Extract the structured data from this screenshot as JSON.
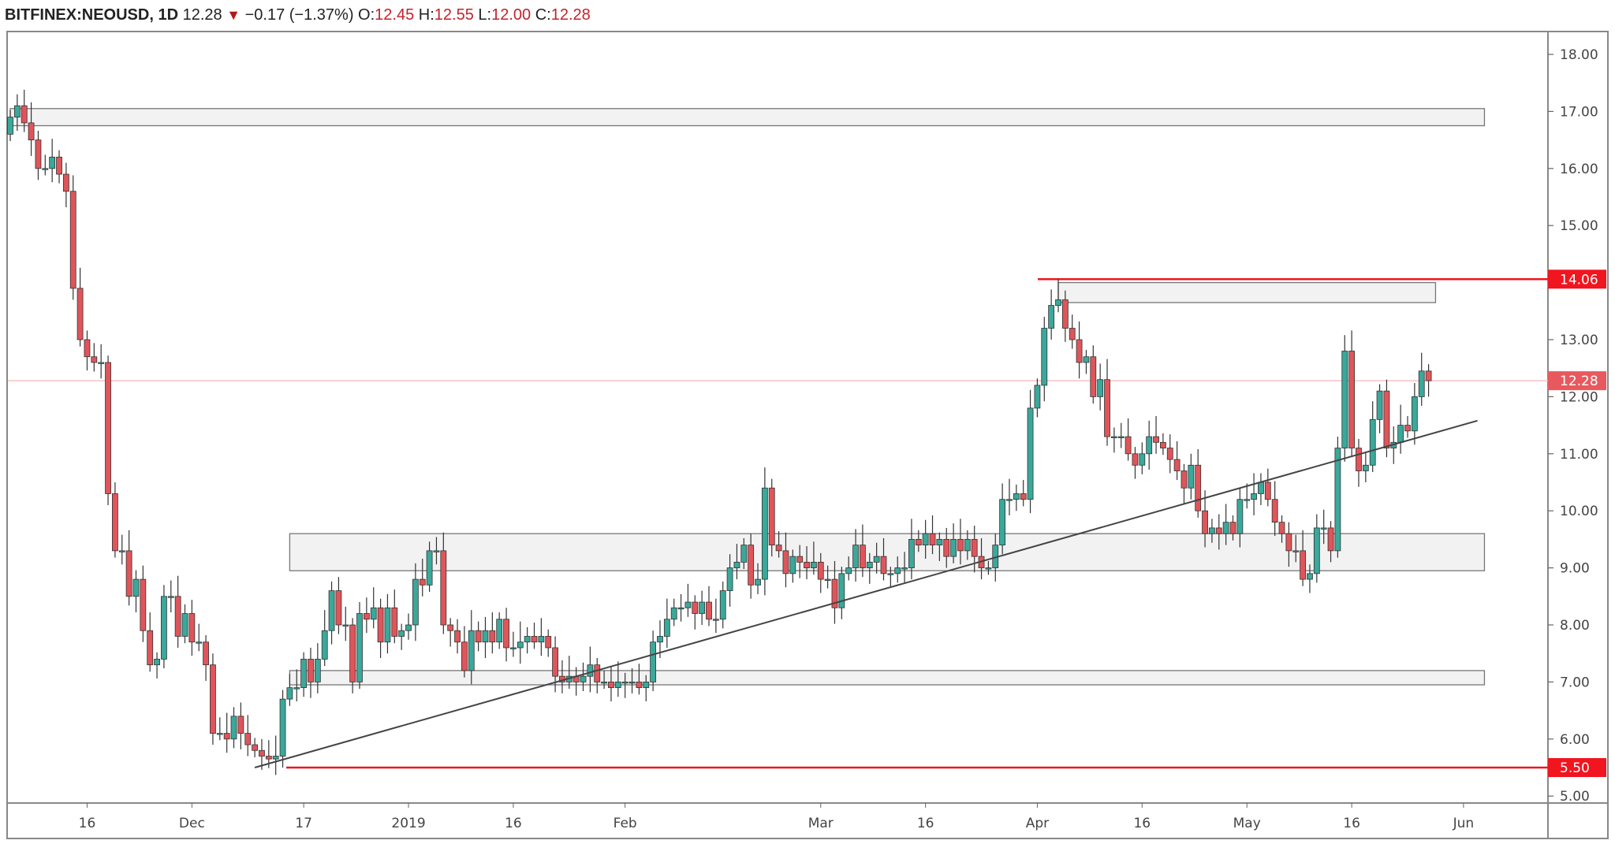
{
  "header": {
    "symbol": "BITFINEX:NEOUSD, 1D",
    "last": "12.28",
    "change": "−0.17 (−1.37%)",
    "o_label": "O:",
    "o": "12.45",
    "h_label": "H:",
    "h": "12.55",
    "l_label": "L:",
    "l": "12.00",
    "c_label": "C:",
    "c": "12.28",
    "arrow_icon": "triangle-down-icon"
  },
  "colors": {
    "up": "#3aa89a",
    "down": "#e0555a",
    "level": "#f0151f",
    "last": "#e8595e",
    "zone": "#f2f2f2"
  },
  "chart_data": {
    "type": "candlestick",
    "title": "BITFINEX:NEOUSD, 1D",
    "start_date": "2018-11-05",
    "ylim": [
      4.9,
      18.2
    ],
    "y_ticks": [
      "18.00",
      "17.00",
      "16.00",
      "15.00",
      "13.00",
      "12.00",
      "11.00",
      "10.00",
      "9.00",
      "8.00",
      "7.00",
      "6.00",
      "5.00"
    ],
    "x_ticks": [
      {
        "label": "16",
        "day": 11
      },
      {
        "label": "Dec",
        "day": 26
      },
      {
        "label": "17",
        "day": 42
      },
      {
        "label": "2019",
        "day": 57
      },
      {
        "label": "16",
        "day": 72
      },
      {
        "label": "Feb",
        "day": 88
      },
      {
        "label": "Mar",
        "day": 116
      },
      {
        "label": "16",
        "day": 131
      },
      {
        "label": "Apr",
        "day": 147
      },
      {
        "label": "16",
        "day": 162
      },
      {
        "label": "May",
        "day": 177
      },
      {
        "label": "16",
        "day": 192
      },
      {
        "label": "Jun",
        "day": 208
      }
    ],
    "first_open": 16.6,
    "closes": [
      16.9,
      17.1,
      16.8,
      16.5,
      16.0,
      16.0,
      16.2,
      15.9,
      15.6,
      13.9,
      13.0,
      12.7,
      12.6,
      12.6,
      10.3,
      9.3,
      9.3,
      8.5,
      8.8,
      7.9,
      7.3,
      7.4,
      8.5,
      8.5,
      7.8,
      8.2,
      7.7,
      7.7,
      7.3,
      6.1,
      6.1,
      6.0,
      6.4,
      6.1,
      5.9,
      5.8,
      5.7,
      5.65,
      5.7,
      6.7,
      6.9,
      6.9,
      7.4,
      7.0,
      7.4,
      7.9,
      8.6,
      8.0,
      8.0,
      7.0,
      8.2,
      8.1,
      8.3,
      7.7,
      8.3,
      7.8,
      7.9,
      8.0,
      8.8,
      8.7,
      9.3,
      9.3,
      8.0,
      7.9,
      7.7,
      7.2,
      7.9,
      7.7,
      7.9,
      7.7,
      8.1,
      7.6,
      7.6,
      7.7,
      7.8,
      7.7,
      7.8,
      7.6,
      7.1,
      7.0,
      7.1,
      7.0,
      7.1,
      7.3,
      7.0,
      7.0,
      6.9,
      7.0,
      7.0,
      7.0,
      6.9,
      7.0,
      7.7,
      7.8,
      8.1,
      8.3,
      8.3,
      8.4,
      8.2,
      8.4,
      8.1,
      8.1,
      8.6,
      9.0,
      9.1,
      9.4,
      8.7,
      8.8,
      10.4,
      9.4,
      9.3,
      8.9,
      9.2,
      9.1,
      9.0,
      9.1,
      8.8,
      8.8,
      8.3,
      8.9,
      9.0,
      9.4,
      9.0,
      9.1,
      9.2,
      8.9,
      8.9,
      9.0,
      9.0,
      9.5,
      9.4,
      9.6,
      9.4,
      9.5,
      9.2,
      9.5,
      9.3,
      9.5,
      9.2,
      9.0,
      9.0,
      9.4,
      10.2,
      10.2,
      10.3,
      10.2,
      11.8,
      12.2,
      13.2,
      13.6,
      13.7,
      13.2,
      13.0,
      12.6,
      12.7,
      12.0,
      12.3,
      11.3,
      11.3,
      11.3,
      11.0,
      10.8,
      11.0,
      11.3,
      11.2,
      11.1,
      10.9,
      10.7,
      10.4,
      10.8,
      10.0,
      9.6,
      9.7,
      9.6,
      9.8,
      9.6,
      10.2,
      10.2,
      10.3,
      10.5,
      10.2,
      9.8,
      9.6,
      9.3,
      9.3,
      8.8,
      8.9,
      9.7,
      9.7,
      9.3,
      11.1,
      12.8,
      11.1,
      10.7,
      10.8,
      11.6,
      12.1,
      11.1,
      11.2,
      11.5,
      11.4,
      12.0,
      12.45,
      12.28
    ],
    "levels": [
      {
        "label": "14.06",
        "value": 14.06
      },
      {
        "label": "5.50",
        "value": 5.5
      }
    ],
    "last_price": {
      "label": "12.28",
      "value": 12.28
    },
    "zones": [
      {
        "low": 16.75,
        "high": 17.05,
        "from_day": 0,
        "to_day": 211
      },
      {
        "low": 13.65,
        "high": 14.0,
        "from_day": 150,
        "to_day": 204
      },
      {
        "low": 8.95,
        "high": 9.6,
        "from_day": 40,
        "to_day": 211
      },
      {
        "low": 6.95,
        "high": 7.2,
        "from_day": 40,
        "to_day": 211
      }
    ],
    "trendline": {
      "from_day": 35,
      "from_price": 5.5,
      "to_day": 210,
      "to_price": 11.58
    }
  }
}
